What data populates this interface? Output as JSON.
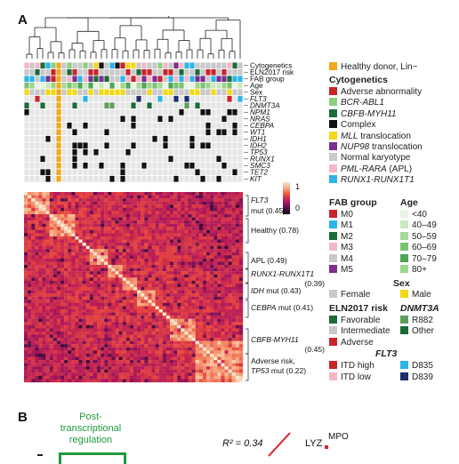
{
  "panel_a_label": "A",
  "panel_b_label": "B",
  "track_labels": [
    "Cytogenetics",
    "ELN2017 risk",
    "FAB group",
    "Age",
    "Sex",
    "FLT3",
    "DNMT3A",
    "NPM1",
    "NRAS",
    "CEBPA",
    "WT1",
    "IDH1",
    "IDH2",
    "TP53",
    "RUNX1",
    "SMC3",
    "TET2",
    "KIT"
  ],
  "italic_tracks": [
    "FLT3",
    "DNMT3A",
    "NPM1",
    "NRAS",
    "CEBPA",
    "WT1",
    "IDH1",
    "IDH2",
    "TP53",
    "RUNX1",
    "SMC3",
    "TET2",
    "KIT"
  ],
  "colorbar": {
    "max_label": "1",
    "zero_label": "0",
    "colors": [
      "#f8e6cf",
      "#f6a57a",
      "#e9473d",
      "#b3195a",
      "#5c0e4e",
      "#1a0716"
    ]
  },
  "cluster_labels": [
    {
      "lines": [
        "FLT3",
        "mut (0.45)"
      ]
    },
    {
      "lines": [
        "Healthy (0.78)"
      ]
    },
    {
      "lines": [
        "APL (0.49)"
      ]
    },
    {
      "lines": [
        "RUNX1-RUNX1T1",
        "(0.39)"
      ]
    },
    {
      "lines": [
        "IDH mut (0.43)"
      ]
    },
    {
      "lines": [
        "CEBPA mut (0.41)"
      ]
    },
    {
      "lines": [
        "CBFB-MYH11",
        "(0.45)"
      ]
    },
    {
      "lines": [
        "Adverse risk,",
        "TP53 mut (0.22)"
      ]
    }
  ],
  "legend": {
    "healthy": {
      "label": "Healthy donor, Lin−",
      "color": "#f0a81c"
    },
    "cytogenetics": {
      "title": "Cytogenetics",
      "items": [
        {
          "label": "Adverse abnormality",
          "color": "#c8252b"
        },
        {
          "label": "BCR-ABL1",
          "color": "#8ccf7e"
        },
        {
          "label": "CBFB-MYH11",
          "color": "#1d6b35"
        },
        {
          "label": "Complex",
          "color": "#111111"
        },
        {
          "label": "MLL translocation",
          "color": "#f2d81b"
        },
        {
          "label": "NUP98 translocation",
          "color": "#7b2f8e"
        },
        {
          "label": "Normal karyotype",
          "color": "#c9c9c9"
        },
        {
          "label": "PML-RARA (APL)",
          "color": "#f4b7c6"
        },
        {
          "label": "RUNX1-RUNX1T1",
          "color": "#2bb5e8"
        }
      ]
    },
    "fab": {
      "title": "FAB group",
      "items": [
        {
          "label": "M0",
          "color": "#c8252b"
        },
        {
          "label": "M1",
          "color": "#2bb5e8"
        },
        {
          "label": "M2",
          "color": "#1d6b35"
        },
        {
          "label": "M3",
          "color": "#f4b7c6"
        },
        {
          "label": "M4",
          "color": "#c9c9c9"
        },
        {
          "label": "M5",
          "color": "#7b2f8e"
        }
      ]
    },
    "age": {
      "title": "Age",
      "items": [
        {
          "label": "<40",
          "color": "#e8f3e1"
        },
        {
          "label": "40–49",
          "color": "#cbe8bd"
        },
        {
          "label": "50–59",
          "color": "#a7d79a"
        },
        {
          "label": "60–69",
          "color": "#7cc274"
        },
        {
          "label": "70–79",
          "color": "#4fa55a"
        },
        {
          "label": "80+",
          "color": "#9fd48d"
        }
      ]
    },
    "sex": {
      "title": "Sex",
      "items": [
        {
          "label": "Female",
          "color": "#c9c9c9"
        },
        {
          "label": "Male",
          "color": "#f2d81b"
        }
      ]
    },
    "eln": {
      "title": "ELN2017 risk",
      "items": [
        {
          "label": "Favorable",
          "color": "#1d6b35"
        },
        {
          "label": "Intermediate",
          "color": "#c9c9c9"
        },
        {
          "label": "Adverse",
          "color": "#c8252b"
        }
      ]
    },
    "dnmt3a": {
      "title": "DNMT3A",
      "items": [
        {
          "label": "R882",
          "color": "#5e9e5a"
        },
        {
          "label": "Other",
          "color": "#1d6b35"
        }
      ]
    },
    "flt3": {
      "title": "FLT3",
      "items": [
        {
          "label": "ITD high",
          "color": "#c8252b"
        },
        {
          "label": "ITD low",
          "color": "#f4b7c6"
        },
        {
          "label": "D835",
          "color": "#2bb5e8"
        },
        {
          "label": "D839",
          "color": "#1c2f6b"
        }
      ]
    }
  },
  "panel_b": {
    "box_title": [
      "Post-",
      "transcriptional",
      "regulation"
    ],
    "r2_label": "R² = 0.34",
    "gene_lyz": "LYZ",
    "gene_mpo": "MPO"
  }
}
